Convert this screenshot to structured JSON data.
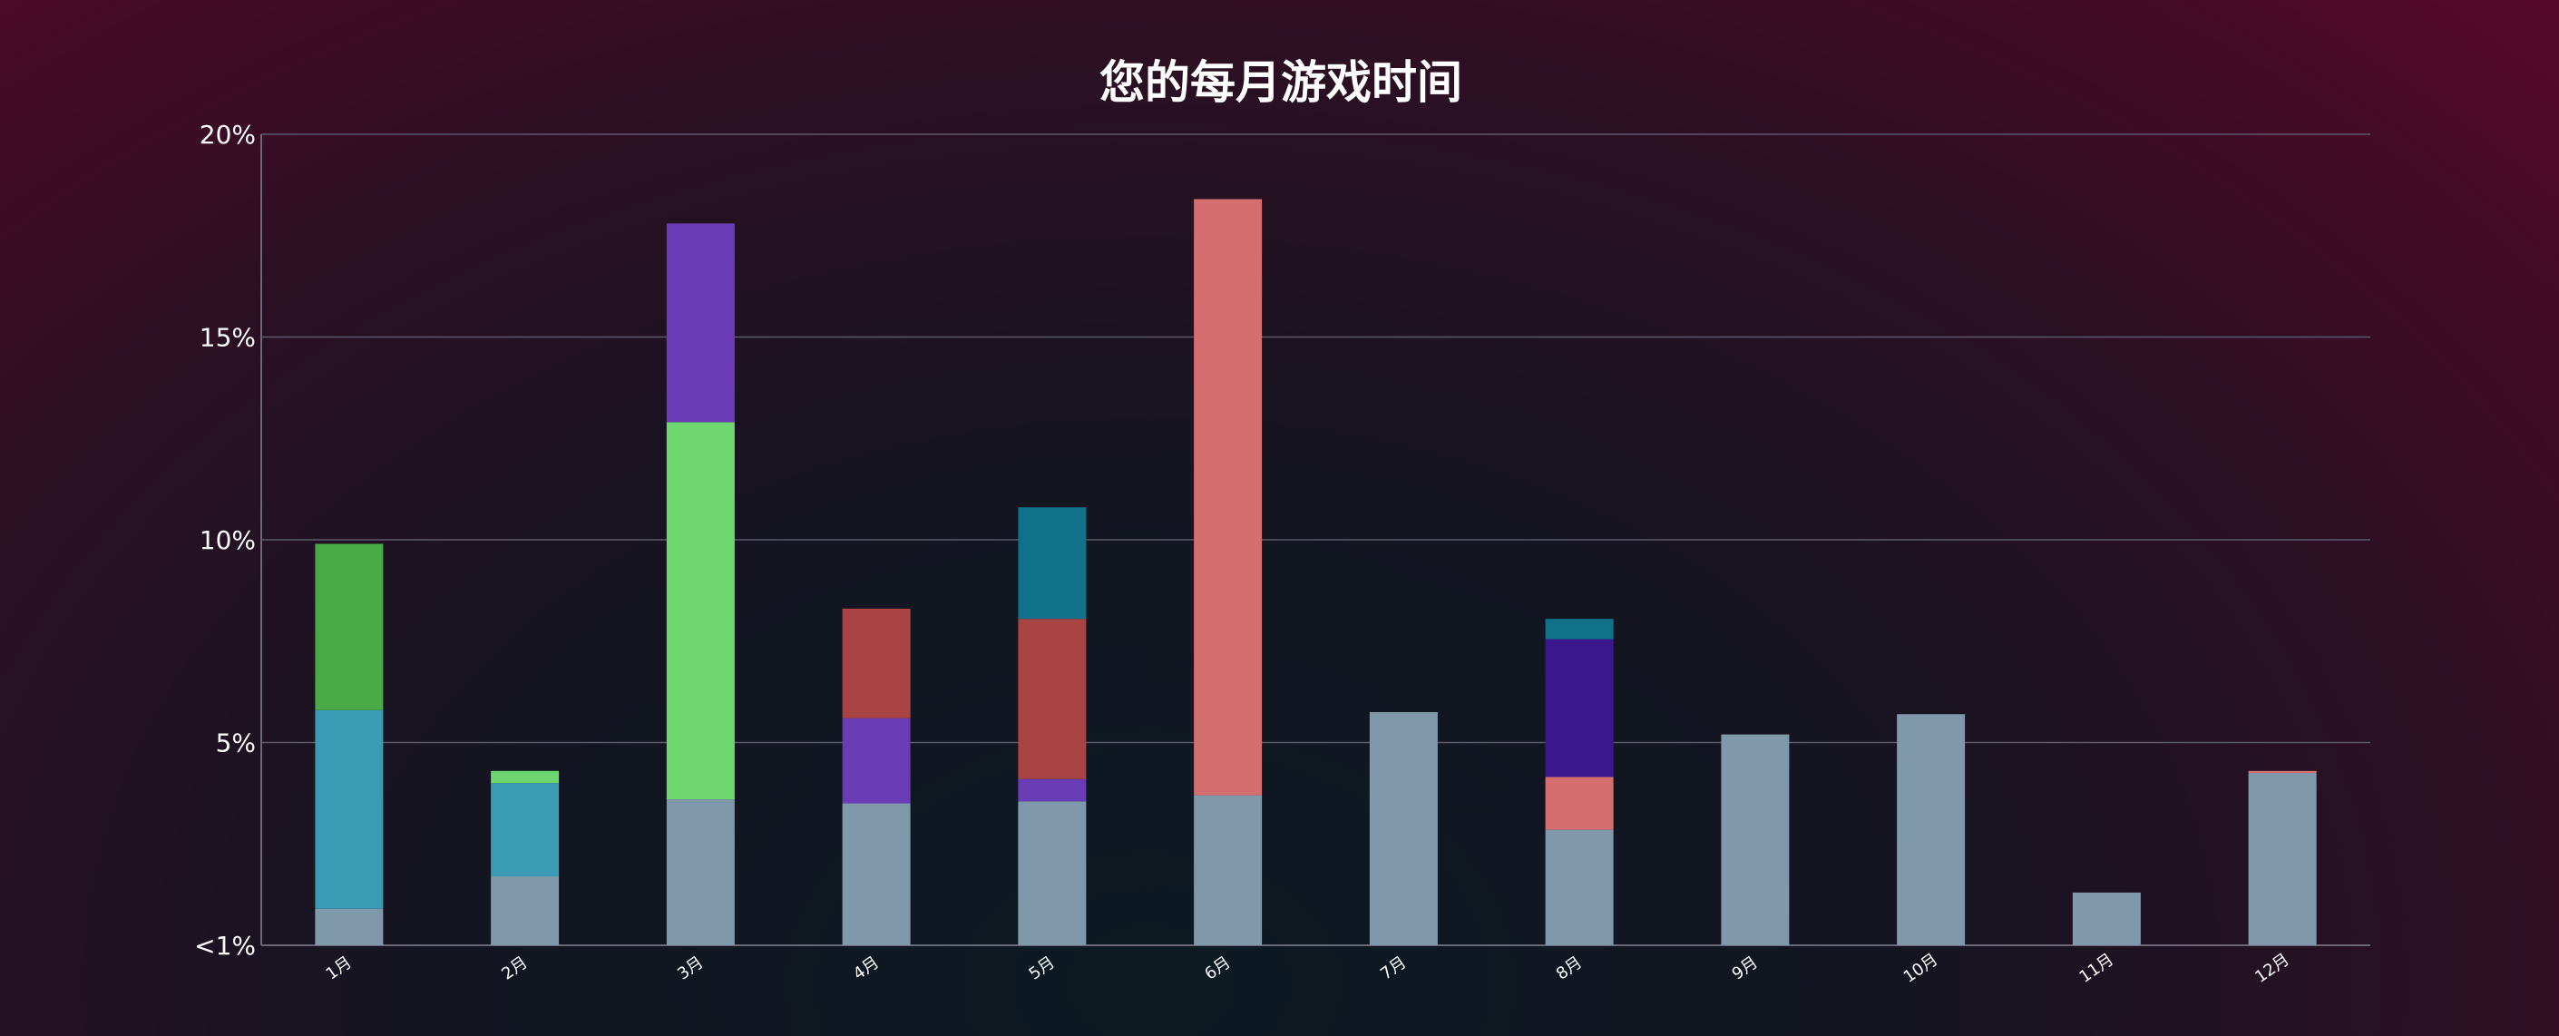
{
  "chart_data": {
    "type": "bar",
    "stacked": true,
    "title": "您的每月游戏时间",
    "categories": [
      "1月",
      "2月",
      "3月",
      "4月",
      "5月",
      "6月",
      "7月",
      "8月",
      "9月",
      "10月",
      "11月",
      "12月"
    ],
    "y_tick_labels": [
      "<1%",
      "5%",
      "10%",
      "15%",
      "20%"
    ],
    "y_tick_values": [
      0,
      5,
      10,
      15,
      20
    ],
    "ylim": [
      0,
      20
    ],
    "grid": true,
    "series": [
      {
        "color": "#7f98aa",
        "values": [
          0.9,
          1.7,
          3.6,
          3.5,
          3.55,
          3.7,
          5.75,
          2.85,
          5.2,
          5.7,
          1.3,
          4.25
        ]
      },
      {
        "color": "#3b9bb5",
        "values": [
          4.9,
          2.3,
          0,
          0,
          0,
          0,
          0,
          0,
          0,
          0,
          0,
          0
        ]
      },
      {
        "color": "#6dd66e",
        "values": [
          0,
          0.3,
          9.3,
          0,
          0,
          0,
          0,
          0,
          0,
          0,
          0,
          0
        ]
      },
      {
        "color": "#48ab48",
        "values": [
          4.1,
          0,
          0,
          0,
          0,
          0,
          0,
          0,
          0,
          0,
          0,
          0
        ]
      },
      {
        "color": "#6a3db7",
        "values": [
          0,
          0,
          4.9,
          2.1,
          0.55,
          0,
          0,
          0,
          0,
          0,
          0,
          0
        ]
      },
      {
        "color": "#a94444",
        "values": [
          0,
          0,
          0,
          2.7,
          3.95,
          0,
          0,
          0,
          0,
          0,
          0,
          0
        ]
      },
      {
        "color": "#d56e6e",
        "values": [
          0,
          0,
          0,
          0,
          0,
          14.7,
          0,
          1.3,
          0,
          0,
          0,
          0.05
        ]
      },
      {
        "color": "#3c188f",
        "values": [
          0,
          0,
          0,
          0,
          0,
          0,
          0,
          3.4,
          0,
          0,
          0,
          0
        ]
      },
      {
        "color": "#11718a",
        "values": [
          0,
          0,
          0,
          0,
          2.75,
          0,
          0,
          0.5,
          0,
          0,
          0,
          0
        ]
      }
    ]
  }
}
